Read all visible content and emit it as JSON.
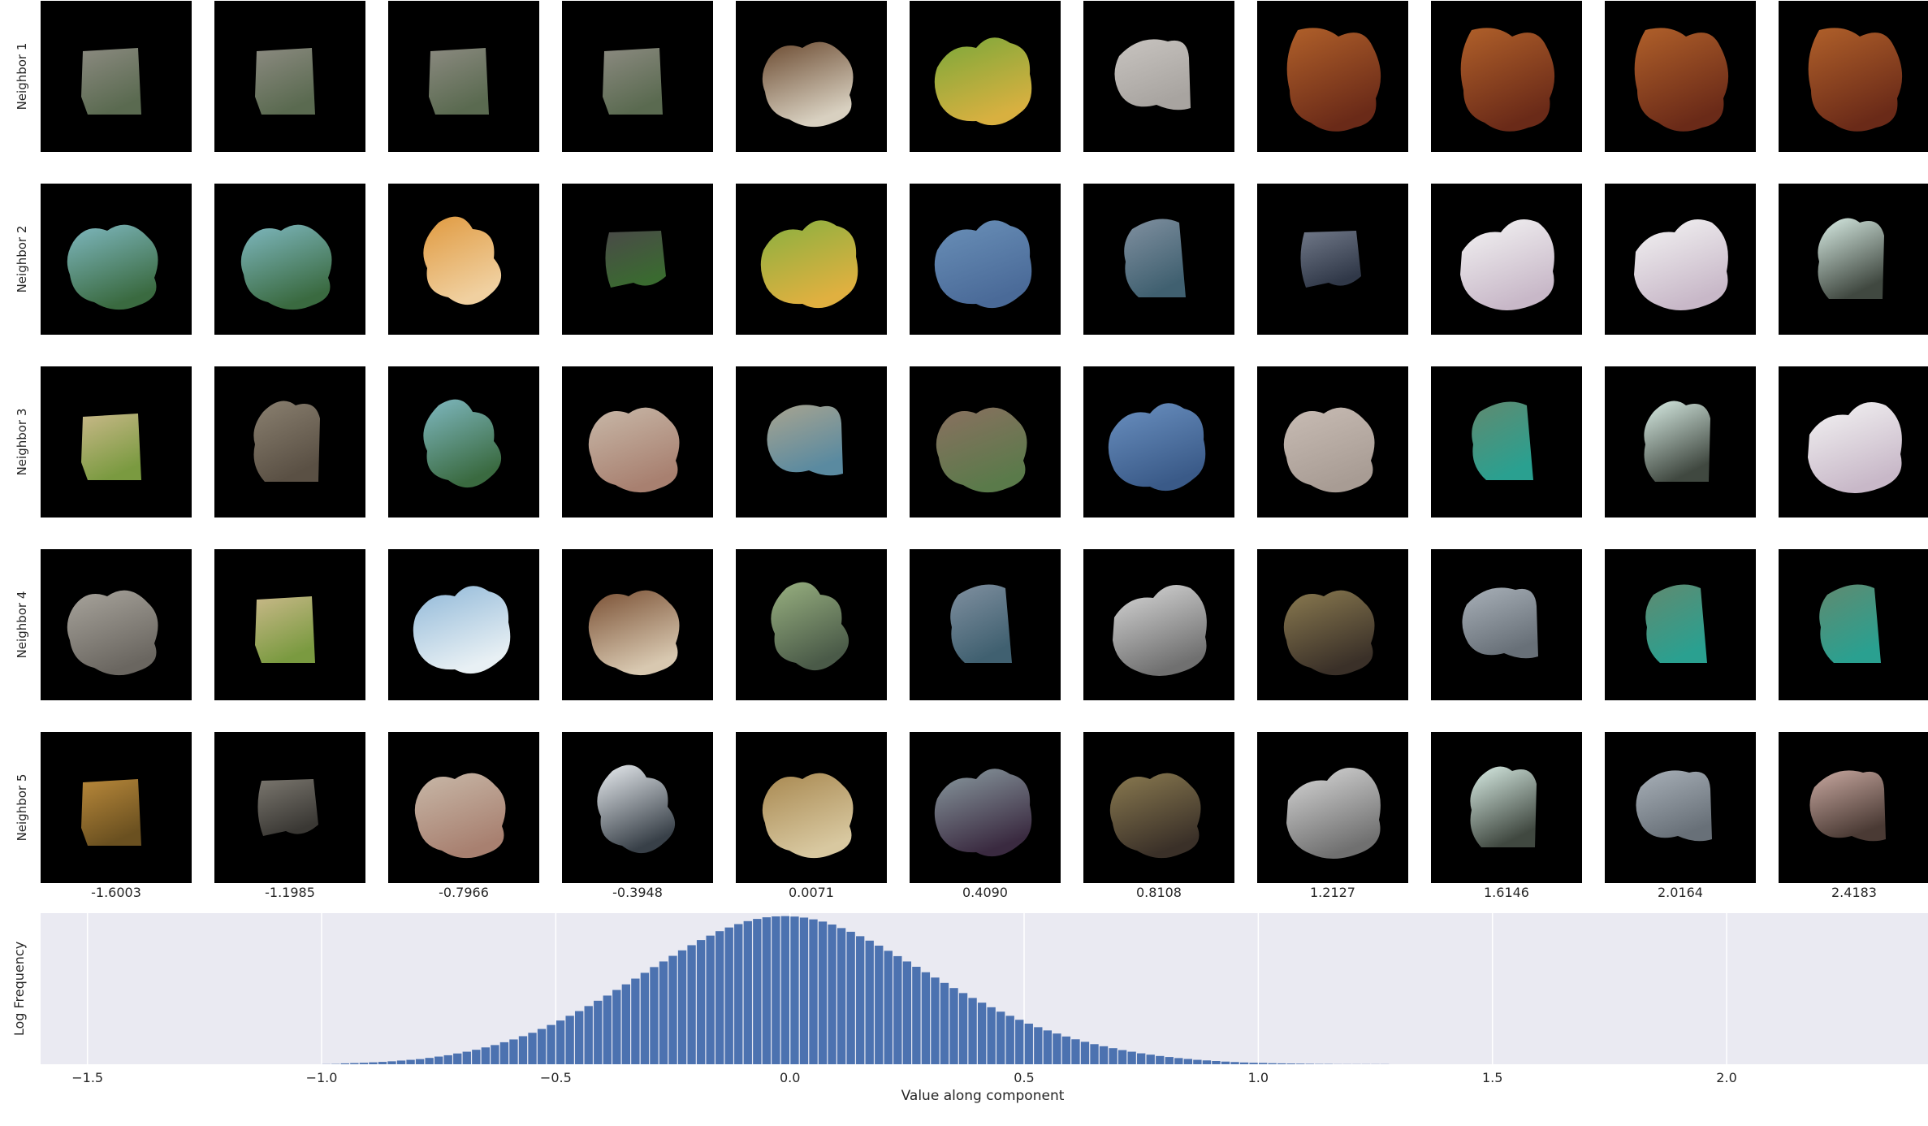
{
  "row_labels": [
    "Neighbor 1",
    "Neighbor 2",
    "Neighbor 3",
    "Neighbor 4",
    "Neighbor 5"
  ],
  "column_values": [
    "-1.6003",
    "-1.1985",
    "-0.7966",
    "-0.3948",
    "0.0071",
    "0.4090",
    "0.8108",
    "1.2127",
    "1.6146",
    "2.0164",
    "2.4183"
  ],
  "tiles": [
    [
      {
        "color": "#8b8a80",
        "color2": "#5a6a50",
        "shape": 1
      },
      {
        "color": "#8b8a80",
        "color2": "#5a6a50",
        "shape": 1
      },
      {
        "color": "#8b8a80",
        "color2": "#5a6a50",
        "shape": 1
      },
      {
        "color": "#8b8a80",
        "color2": "#5a6a50",
        "shape": 1
      },
      {
        "color": "#6b4a30",
        "color2": "#d8d0c0",
        "shape": 2
      },
      {
        "color": "#7aa83a",
        "color2": "#d8b040",
        "shape": 3
      },
      {
        "color": "#c8c4c0",
        "color2": "#a8a4a0",
        "shape": 4
      },
      {
        "color": "#b0602a",
        "color2": "#6a2a18",
        "shape": 5
      },
      {
        "color": "#b0602a",
        "color2": "#6a2a18",
        "shape": 5
      },
      {
        "color": "#b0602a",
        "color2": "#6a2a18",
        "shape": 5
      },
      {
        "color": "#b0602a",
        "color2": "#6a2a18",
        "shape": 5
      }
    ],
    [
      {
        "color": "#7fb8c0",
        "color2": "#3a6a40",
        "shape": 2
      },
      {
        "color": "#7fb8c0",
        "color2": "#3a6a40",
        "shape": 2
      },
      {
        "color": "#e09a40",
        "color2": "#f0d0a0",
        "shape": 6
      },
      {
        "color": "#4a4a48",
        "color2": "#3a6a30",
        "shape": 7
      },
      {
        "color": "#88b040",
        "color2": "#e0b040",
        "shape": 3
      },
      {
        "color": "#6a90b8",
        "color2": "#4a6a98",
        "shape": 3
      },
      {
        "color": "#8090a0",
        "color2": "#406070",
        "shape": 8
      },
      {
        "color": "#707888",
        "color2": "#303848",
        "shape": 7
      },
      {
        "color": "#f4f4f4",
        "color2": "#c8b8c8",
        "shape": 9
      },
      {
        "color": "#f4f4f4",
        "color2": "#c8b8c8",
        "shape": 9
      },
      {
        "color": "#d8ece4",
        "color2": "#404840",
        "shape": 10
      }
    ],
    [
      {
        "color": "#c8b888",
        "color2": "#7a9a40",
        "shape": 1
      },
      {
        "color": "#8a8070",
        "color2": "#5a5044",
        "shape": 10
      },
      {
        "color": "#7fb8c0",
        "color2": "#3a6a40",
        "shape": 6
      },
      {
        "color": "#c8b8a8",
        "color2": "#a88070",
        "shape": 2
      },
      {
        "color": "#a8a490",
        "color2": "#5a8aa0",
        "shape": 4
      },
      {
        "color": "#8a7060",
        "color2": "#5a7a4a",
        "shape": 2
      },
      {
        "color": "#6a90c0",
        "color2": "#3a5a88",
        "shape": 3
      },
      {
        "color": "#c8bcb4",
        "color2": "#a89c94",
        "shape": 2
      },
      {
        "color": "#608a70",
        "color2": "#2aa090",
        "shape": 8
      },
      {
        "color": "#d8ece4",
        "color2": "#404840",
        "shape": 10
      },
      {
        "color": "#f4f4f4",
        "color2": "#c8b8c8",
        "shape": 9
      }
    ],
    [
      {
        "color": "#a8a49c",
        "color2": "#6a6660",
        "shape": 2
      },
      {
        "color": "#c8b888",
        "color2": "#7a9a40",
        "shape": 1
      },
      {
        "color": "#90b8d8",
        "color2": "#e8f0f4",
        "shape": 3
      },
      {
        "color": "#7a5034",
        "color2": "#d8c8b0",
        "shape": 2
      },
      {
        "color": "#98b080",
        "color2": "#4a5a48",
        "shape": 6
      },
      {
        "color": "#8090a0",
        "color2": "#406070",
        "shape": 8
      },
      {
        "color": "#d8d8d8",
        "color2": "#707070",
        "shape": 9
      },
      {
        "color": "#8a7a50",
        "color2": "#3a3028",
        "shape": 2
      },
      {
        "color": "#a8b0b8",
        "color2": "#687078",
        "shape": 4
      },
      {
        "color": "#608a70",
        "color2": "#2aa090",
        "shape": 8
      },
      {
        "color": "#608a70",
        "color2": "#2aa090",
        "shape": 8
      }
    ],
    [
      {
        "color": "#b8883a",
        "color2": "#6a5020",
        "shape": 1
      },
      {
        "color": "#7a766e",
        "color2": "#3a3834",
        "shape": 7
      },
      {
        "color": "#c8b8a8",
        "color2": "#a88070",
        "shape": 2
      },
      {
        "color": "#e8ecf0",
        "color2": "#384048",
        "shape": 6
      },
      {
        "color": "#a88850",
        "color2": "#d8c8a0",
        "shape": 2
      },
      {
        "color": "#8a9aa0",
        "color2": "#3a2a40",
        "shape": 3
      },
      {
        "color": "#8a7a50",
        "color2": "#3a3028",
        "shape": 2
      },
      {
        "color": "#d8d8d8",
        "color2": "#707070",
        "shape": 9
      },
      {
        "color": "#d8ece4",
        "color2": "#404840",
        "shape": 10
      },
      {
        "color": "#a8b0b8",
        "color2": "#687078",
        "shape": 4
      },
      {
        "color": "#c8a8a0",
        "color2": "#4a3a34",
        "shape": 4
      }
    ]
  ],
  "chart_data": {
    "type": "bar",
    "xlabel": "Value along component",
    "ylabel": "Log Frequency",
    "xlim": [
      -1.6,
      2.43
    ],
    "xticks": [
      -1.5,
      -1.0,
      -0.5,
      0.0,
      0.5,
      1.0,
      1.5,
      2.0
    ],
    "xtick_labels": [
      "−1.5",
      "−1.0",
      "−0.5",
      "0.0",
      "0.5",
      "1.0",
      "1.5",
      "2.0"
    ],
    "grid": true,
    "bar_color": "#4c72b0",
    "background": "#eaeaf2",
    "bin_width": 0.02,
    "x": [
      -1.0,
      -0.98,
      -0.96,
      -0.94,
      -0.92,
      -0.9,
      -0.88,
      -0.86,
      -0.84,
      -0.82,
      -0.8,
      -0.78,
      -0.76,
      -0.74,
      -0.72,
      -0.7,
      -0.68,
      -0.66,
      -0.64,
      -0.62,
      -0.6,
      -0.58,
      -0.56,
      -0.54,
      -0.52,
      -0.5,
      -0.48,
      -0.46,
      -0.44,
      -0.42,
      -0.4,
      -0.38,
      -0.36,
      -0.34,
      -0.32,
      -0.3,
      -0.28,
      -0.26,
      -0.24,
      -0.22,
      -0.2,
      -0.18,
      -0.16,
      -0.14,
      -0.12,
      -0.1,
      -0.08,
      -0.06,
      -0.04,
      -0.02,
      0.0,
      0.02,
      0.04,
      0.06,
      0.08,
      0.1,
      0.12,
      0.14,
      0.16,
      0.18,
      0.2,
      0.22,
      0.24,
      0.26,
      0.28,
      0.3,
      0.32,
      0.34,
      0.36,
      0.38,
      0.4,
      0.42,
      0.44,
      0.46,
      0.48,
      0.5,
      0.52,
      0.54,
      0.56,
      0.58,
      0.6,
      0.62,
      0.64,
      0.66,
      0.68,
      0.7,
      0.72,
      0.74,
      0.76,
      0.78,
      0.8,
      0.82,
      0.84,
      0.86,
      0.88,
      0.9,
      0.92,
      0.94,
      0.96,
      0.98,
      1.0,
      1.02,
      1.04,
      1.06,
      1.08,
      1.1,
      1.12,
      1.14,
      1.16,
      1.18,
      1.2,
      1.22,
      1.24,
      1.26
    ],
    "values": [
      0.1,
      0.2,
      0.6,
      0.8,
      1,
      1.3,
      1.6,
      2,
      2.5,
      3,
      3.5,
      4.3,
      5.2,
      6.1,
      7.3,
      8.5,
      9.8,
      11.4,
      13,
      14.9,
      16.8,
      19,
      21.3,
      23.9,
      26.6,
      29.6,
      32.8,
      36,
      39.4,
      43,
      46.5,
      50.3,
      54.1,
      58,
      61.9,
      65.8,
      69.6,
      73.4,
      77.1,
      80.6,
      84.1,
      87.1,
      90.1,
      92.6,
      94.9,
      96.9,
      98.4,
      99.5,
      100.1,
      100.3,
      100,
      99.3,
      98.1,
      96.6,
      94.6,
      92.2,
      89.7,
      86.7,
      83.7,
      80.3,
      76.8,
      73.2,
      69.6,
      66,
      62.3,
      58.7,
      55.1,
      51.6,
      48.2,
      44.9,
      41.7,
      38.6,
      35.6,
      32.8,
      30.1,
      27.5,
      25.1,
      22.9,
      20.8,
      18.8,
      16.9,
      15.2,
      13.6,
      12.2,
      10.9,
      9.6,
      8.5,
      7.4,
      6.5,
      5.6,
      4.9,
      4.2,
      3.6,
      3,
      2.6,
      2.2,
      1.8,
      1.5,
      1.2,
      1,
      0.9,
      0.7,
      0.6,
      0.5,
      0.4,
      0.3,
      0.2,
      0.2,
      0.1,
      0.1,
      0.1,
      0.1,
      0.1,
      0.1
    ]
  }
}
